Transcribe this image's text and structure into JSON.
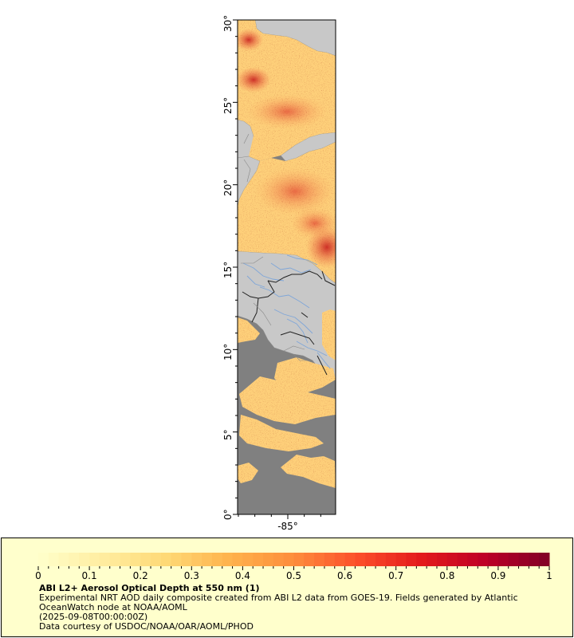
{
  "map": {
    "lat_labels": [
      "30°",
      "25°",
      "20°",
      "15°",
      "10°",
      "5°",
      "0°"
    ],
    "lon_labels": [
      "-85°"
    ],
    "colors": {
      "land": "#c8c8c8",
      "no_data": "#808080",
      "coastline": "#8a8a8a",
      "rivers": "#7fa6d8",
      "borders": "#202020",
      "grid_ticks": "#000000"
    },
    "aod_colormap": [
      "#fff5cc",
      "#ffe3a3",
      "#fed07a",
      "#fdb560",
      "#fc8d48",
      "#f65a3b",
      "#e2262a",
      "#bd0026",
      "#800026"
    ]
  },
  "colorbar": {
    "ticks": [
      "0",
      "0.1",
      "0.2",
      "0.3",
      "0.4",
      "0.5",
      "0.6",
      "0.7",
      "0.8",
      "0.9",
      "1"
    ],
    "range": [
      0,
      1
    ],
    "colors": [
      "#ffffcc",
      "#ffeda0",
      "#fed976",
      "#feb24c",
      "#fd8d3c",
      "#fc4e2a",
      "#e31a1c",
      "#bd0026",
      "#800026"
    ]
  },
  "caption": {
    "title": "ABI L2+ Aerosol Optical Depth at 550 nm (1)",
    "description": "Experimental NRT AOD daily composite created from ABI L2 data from GOES-19. Fields generated by Atlantic OceanWatch node at NOAA/AOML",
    "timestamp": "(2025-09-08T00:00:00Z)",
    "credit": "Data courtesy of USDOC/NOAA/OAR/AOML/PHOD"
  }
}
